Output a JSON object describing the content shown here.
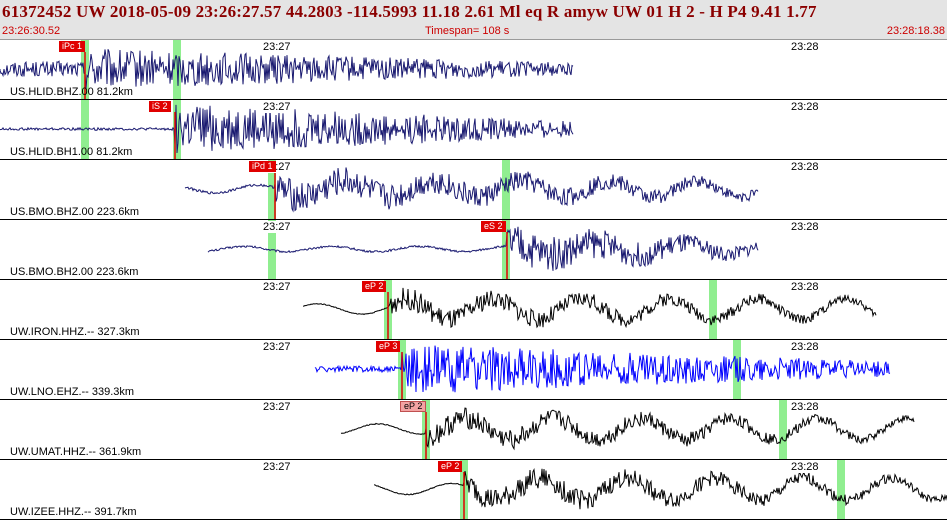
{
  "header": {
    "title": "61372452 UW 2018-05-09 23:26:27.57   44.2803 -114.5993  11.18  2.61 Ml  eq  R amyw     UW 01  H   2  -  H P4    9.41  1.77",
    "start_time": "23:26:30.52",
    "timespan": "Timespan= 108 s",
    "end_time": "23:28:18.38"
  },
  "colors": {
    "header_bg": "#e4e4e4",
    "header_text": "#8b0000",
    "pick": "#e00000",
    "pick_weak": "#f3a3a3",
    "green_marker": "#90ee90",
    "trace_navy": "#191970",
    "trace_blue": "#0000ff",
    "trace_black": "#000000"
  },
  "time_ticks": [
    "23:27",
    "23:28"
  ],
  "panels": [
    {
      "station": "US.HLID.BHZ.00 81.2km",
      "pick": "iPc 1",
      "pick_style": "strong",
      "trace_color": "navy",
      "trace": {
        "start": 0.0,
        "end": 0.605
      },
      "onset": 0.09,
      "greens": [
        0.09,
        0.187
      ],
      "amplitude": 0.34,
      "noise": 0.38,
      "waves": 0.0
    },
    {
      "station": "US.HLID.BH1.00 81.2km",
      "pick": "iS 2",
      "pick_style": "strong",
      "trace_color": "navy",
      "trace": {
        "start": 0.0,
        "end": 0.605
      },
      "onset": 0.185,
      "greens": [
        0.09,
        0.187
      ],
      "amplitude": 0.42,
      "noise": 0.05,
      "waves": 0.0
    },
    {
      "station": "US.BMO.BHZ.00 223.6km",
      "pick": "iPd 1",
      "pick_style": "strong",
      "trace_color": "navy",
      "trace": {
        "start": 0.195,
        "end": 0.8
      },
      "onset": 0.29,
      "greens": [
        0.287,
        0.534
      ],
      "amplitude": 0.4,
      "noise": 0.05,
      "waves": 0.55
    },
    {
      "station": "US.BMO.BH2.00 223.6km",
      "pick": "eS 2",
      "pick_style": "strong",
      "trace_color": "navy",
      "trace": {
        "start": 0.22,
        "end": 0.8
      },
      "onset": 0.535,
      "greens": [
        0.287,
        0.534
      ],
      "amplitude": 0.42,
      "noise": 0.04,
      "waves": 0.35
    },
    {
      "station": "UW.IRON.HHZ.-- 327.3km",
      "pick": "eP 2",
      "pick_style": "strong",
      "trace_color": "black",
      "trace": {
        "start": 0.32,
        "end": 0.925
      },
      "onset": 0.41,
      "greens": [
        0.41,
        0.753
      ],
      "amplitude": 0.36,
      "noise": 0.02,
      "waves": 0.8
    },
    {
      "station": "UW.LNO.EHZ.-- 339.3km",
      "pick": "eP 3",
      "pick_style": "strong",
      "trace_color": "blue",
      "trace": {
        "start": 0.333,
        "end": 0.94
      },
      "onset": 0.425,
      "greens": [
        0.425,
        0.778
      ],
      "amplitude": 0.42,
      "noise": 0.12,
      "waves": 0.0
    },
    {
      "station": "UW.UMAT.HHZ.-- 361.9km",
      "pick": "eP 2",
      "pick_style": "weak",
      "trace_color": "black",
      "trace": {
        "start": 0.36,
        "end": 0.965
      },
      "onset": 0.45,
      "greens": [
        0.45,
        0.827
      ],
      "amplitude": 0.36,
      "noise": 0.02,
      "waves": 0.8
    },
    {
      "station": "UW.IZEE.HHZ.-- 391.7km",
      "pick": "eP 2",
      "pick_style": "strong",
      "trace_color": "black",
      "trace": {
        "start": 0.395,
        "end": 1.0
      },
      "onset": 0.49,
      "greens": [
        0.49,
        0.888
      ],
      "amplitude": 0.38,
      "noise": 0.02,
      "waves": 0.8
    }
  ]
}
